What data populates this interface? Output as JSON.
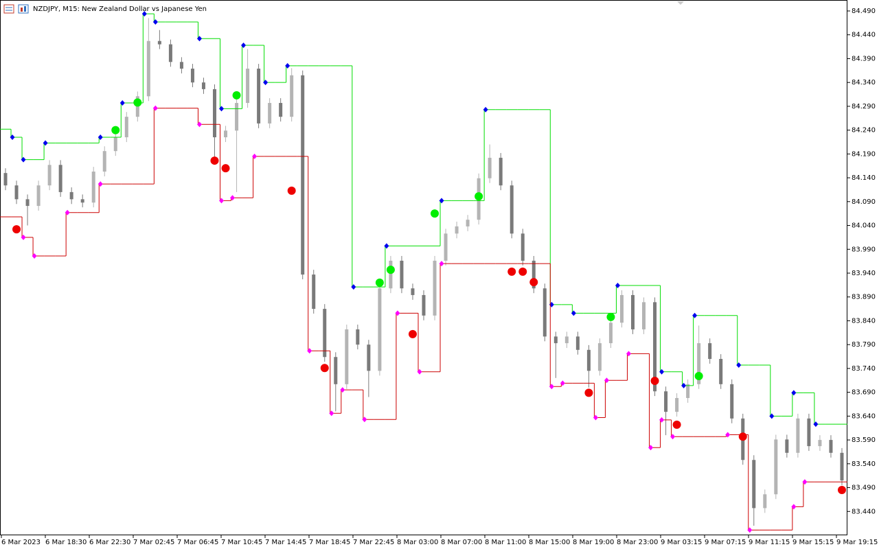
{
  "chart_data": {
    "type": "candlestick",
    "title": "NZDJPY, M15:  New Zealand Dollar vs Japanese Yen",
    "ylim": [
      83.39,
      84.513
    ],
    "yticks": [
      {
        "value": 84.49,
        "label": "84.490"
      },
      {
        "value": 84.44,
        "label": "84.440"
      },
      {
        "value": 84.39,
        "label": "84.390"
      },
      {
        "value": 84.34,
        "label": "84.340"
      },
      {
        "value": 84.29,
        "label": "84.290"
      },
      {
        "value": 84.24,
        "label": "84.240"
      },
      {
        "value": 84.19,
        "label": "84.190"
      },
      {
        "value": 84.14,
        "label": "84.140"
      },
      {
        "value": 84.09,
        "label": "84.090"
      },
      {
        "value": 84.04,
        "label": "84.040"
      },
      {
        "value": 83.99,
        "label": "83.990"
      },
      {
        "value": 83.94,
        "label": "83.940"
      },
      {
        "value": 83.89,
        "label": "83.890"
      },
      {
        "value": 83.84,
        "label": "83.840"
      },
      {
        "value": 83.79,
        "label": "83.790"
      },
      {
        "value": 83.74,
        "label": "83.740"
      },
      {
        "value": 83.69,
        "label": "83.690"
      },
      {
        "value": 83.64,
        "label": "83.640"
      },
      {
        "value": 83.59,
        "label": "83.590"
      },
      {
        "value": 83.54,
        "label": "83.540"
      },
      {
        "value": 83.49,
        "label": "83.490"
      },
      {
        "value": 83.44,
        "label": "83.440"
      }
    ],
    "xtick_labels": [
      "6 Mar 2023",
      "6 Mar 18:30",
      "6 Mar 22:30",
      "7 Mar 02:45",
      "7 Mar 06:45",
      "7 Mar 10:45",
      "7 Mar 14:45",
      "7 Mar 18:45",
      "7 Mar 22:45",
      "8 Mar 03:00",
      "8 Mar 07:00",
      "8 Mar 11:00",
      "8 Mar 15:00",
      "8 Mar 19:00",
      "8 Mar 23:00",
      "9 Mar 03:15",
      "9 Mar 07:15",
      "9 Mar 11:15",
      "9 Mar 15:15",
      "9 Mar 19:15"
    ],
    "ohlc": {
      "up_color": "#b4b4b4",
      "down_color": "#7a7a7a",
      "open": [
        84.15,
        84.124,
        84.095,
        84.081,
        84.124,
        84.167,
        84.11,
        84.095,
        84.088,
        84.153,
        84.196,
        84.225,
        84.268,
        84.311,
        84.427,
        84.42,
        84.383,
        84.369,
        84.34,
        84.326,
        84.225,
        84.239,
        84.297,
        84.369,
        84.254,
        84.297,
        84.268,
        84.355,
        83.937,
        83.865,
        83.764,
        83.707,
        83.822,
        83.79,
        83.735,
        83.908,
        83.966,
        83.908,
        83.894,
        83.851,
        83.966,
        84.023,
        84.038,
        84.052,
        84.139,
        84.182,
        84.124,
        84.023,
        83.966,
        83.908,
        83.807,
        83.793,
        83.807,
        83.779,
        83.735,
        83.793,
        83.836,
        83.894,
        83.822,
        83.879,
        83.692,
        83.649,
        83.678,
        83.707,
        83.793,
        83.76,
        83.707,
        83.635,
        83.548,
        83.447,
        83.476,
        83.591,
        83.563,
        83.635,
        83.577,
        83.59,
        83.563
      ],
      "high": [
        84.16,
        84.134,
        84.105,
        84.134,
        84.177,
        84.177,
        84.12,
        84.105,
        84.163,
        84.206,
        84.235,
        84.278,
        84.321,
        84.475,
        84.45,
        84.43,
        84.393,
        84.379,
        84.35,
        84.336,
        84.249,
        84.307,
        84.41,
        84.379,
        84.307,
        84.307,
        84.37,
        84.365,
        83.947,
        83.875,
        83.774,
        83.832,
        83.832,
        83.8,
        83.918,
        83.976,
        83.976,
        83.918,
        83.904,
        83.976,
        84.033,
        84.048,
        84.062,
        84.149,
        84.21,
        84.192,
        84.134,
        84.033,
        83.976,
        83.918,
        83.817,
        83.817,
        83.817,
        83.789,
        83.803,
        83.846,
        83.904,
        83.904,
        83.889,
        83.889,
        83.702,
        83.688,
        83.717,
        83.83,
        83.803,
        83.77,
        83.717,
        83.645,
        83.558,
        83.486,
        83.601,
        83.601,
        83.645,
        83.645,
        83.6,
        83.6,
        83.573
      ],
      "low": [
        84.114,
        84.085,
        84.04,
        84.071,
        84.114,
        84.1,
        84.085,
        84.078,
        84.078,
        84.143,
        84.186,
        84.215,
        84.258,
        84.301,
        84.41,
        84.373,
        84.359,
        84.33,
        84.316,
        84.18,
        84.215,
        84.11,
        84.287,
        84.244,
        84.244,
        84.258,
        84.258,
        83.927,
        83.855,
        83.754,
        83.65,
        83.697,
        83.78,
        83.68,
        83.725,
        83.898,
        83.898,
        83.884,
        83.841,
        83.841,
        83.956,
        84.013,
        84.028,
        84.042,
        84.129,
        84.114,
        84.013,
        83.956,
        83.898,
        83.797,
        83.72,
        83.783,
        83.769,
        83.7,
        83.725,
        83.783,
        83.826,
        83.812,
        83.812,
        83.682,
        83.6,
        83.639,
        83.668,
        83.697,
        83.75,
        83.697,
        83.625,
        83.538,
        83.41,
        83.437,
        83.466,
        83.553,
        83.553,
        83.567,
        83.567,
        83.553,
        83.495
      ],
      "close": [
        84.124,
        84.095,
        84.081,
        84.124,
        84.167,
        84.11,
        84.095,
        84.088,
        84.153,
        84.196,
        84.225,
        84.268,
        84.311,
        84.427,
        84.42,
        84.383,
        84.369,
        84.34,
        84.326,
        84.225,
        84.239,
        84.297,
        84.369,
        84.254,
        84.297,
        84.268,
        84.355,
        83.937,
        83.865,
        83.764,
        83.707,
        83.822,
        83.79,
        83.735,
        83.908,
        83.966,
        83.908,
        83.894,
        83.851,
        83.966,
        84.023,
        84.038,
        84.052,
        84.139,
        84.182,
        84.124,
        84.023,
        83.966,
        83.908,
        83.807,
        83.793,
        83.807,
        83.779,
        83.735,
        83.793,
        83.836,
        83.894,
        83.822,
        83.879,
        83.692,
        83.649,
        83.678,
        83.707,
        83.793,
        83.76,
        83.707,
        83.635,
        83.548,
        83.447,
        83.476,
        83.591,
        83.563,
        83.635,
        83.577,
        83.59,
        83.563,
        83.505
      ]
    },
    "upper": {
      "color": "#00dd00",
      "marker_color": "#0000ee",
      "values": [
        84.242,
        84.225,
        84.178,
        84.178,
        84.213,
        84.213,
        84.213,
        84.213,
        84.213,
        84.225,
        84.225,
        84.297,
        84.297,
        84.484,
        84.467,
        84.467,
        84.467,
        84.467,
        84.432,
        84.432,
        84.285,
        84.285,
        84.418,
        84.418,
        84.34,
        84.34,
        84.375,
        84.375,
        84.375,
        84.375,
        84.375,
        84.375,
        83.911,
        83.911,
        83.911,
        83.997,
        83.997,
        83.997,
        83.997,
        83.997,
        84.092,
        84.092,
        84.092,
        84.092,
        84.283,
        84.283,
        84.283,
        84.283,
        84.283,
        84.283,
        83.874,
        83.874,
        83.856,
        83.856,
        83.856,
        83.856,
        83.914,
        83.914,
        83.914,
        83.914,
        83.733,
        83.733,
        83.704,
        83.851,
        83.851,
        83.851,
        83.851,
        83.747,
        83.747,
        83.747,
        83.64,
        83.64,
        83.689,
        83.689,
        83.623,
        83.623,
        83.623
      ]
    },
    "lower": {
      "color": "#cc0000",
      "marker_color": "#ff00ff",
      "values": [
        84.058,
        84.058,
        84.015,
        83.976,
        83.976,
        83.976,
        84.067,
        84.067,
        84.067,
        84.127,
        84.127,
        84.127,
        84.127,
        84.127,
        84.286,
        84.286,
        84.286,
        84.286,
        84.252,
        84.252,
        84.092,
        84.098,
        84.098,
        84.185,
        84.185,
        84.185,
        84.185,
        84.185,
        83.777,
        83.777,
        83.646,
        83.695,
        83.695,
        83.633,
        83.633,
        83.633,
        83.856,
        83.856,
        83.733,
        83.733,
        83.96,
        83.96,
        83.96,
        83.96,
        83.96,
        83.96,
        83.96,
        83.96,
        83.96,
        83.96,
        83.702,
        83.709,
        83.709,
        83.709,
        83.637,
        83.715,
        83.715,
        83.771,
        83.771,
        83.574,
        83.632,
        83.597,
        83.597,
        83.597,
        83.597,
        83.597,
        83.601,
        83.601,
        83.401,
        83.401,
        83.401,
        83.401,
        83.45,
        83.502,
        83.502,
        83.502,
        83.502
      ]
    },
    "buy_signals": {
      "color": "#00ee00",
      "values": [
        null,
        null,
        null,
        null,
        null,
        null,
        null,
        null,
        null,
        null,
        84.24,
        null,
        84.298,
        null,
        null,
        null,
        null,
        null,
        null,
        null,
        null,
        84.313,
        null,
        null,
        null,
        null,
        null,
        null,
        null,
        null,
        null,
        null,
        null,
        null,
        83.92,
        83.947,
        null,
        null,
        null,
        84.065,
        null,
        null,
        null,
        84.101,
        null,
        null,
        null,
        null,
        null,
        null,
        null,
        null,
        null,
        null,
        null,
        83.848,
        null,
        null,
        null,
        null,
        null,
        null,
        null,
        83.724,
        null,
        null,
        null,
        null,
        null,
        null,
        null,
        null,
        null,
        null,
        null,
        null,
        null
      ]
    },
    "sell_signals": {
      "color": "#ee0000",
      "values": [
        null,
        84.032,
        null,
        null,
        null,
        null,
        null,
        null,
        null,
        null,
        null,
        null,
        null,
        null,
        null,
        null,
        null,
        null,
        null,
        84.176,
        84.16,
        null,
        null,
        null,
        null,
        null,
        84.113,
        null,
        null,
        83.741,
        null,
        null,
        null,
        null,
        null,
        null,
        null,
        83.812,
        null,
        null,
        null,
        null,
        null,
        null,
        null,
        null,
        83.943,
        83.943,
        83.921,
        null,
        null,
        null,
        null,
        83.689,
        null,
        null,
        null,
        null,
        null,
        83.714,
        null,
        83.622,
        null,
        null,
        null,
        null,
        null,
        83.597,
        null,
        null,
        null,
        null,
        null,
        null,
        null,
        null,
        83.485
      ]
    }
  }
}
